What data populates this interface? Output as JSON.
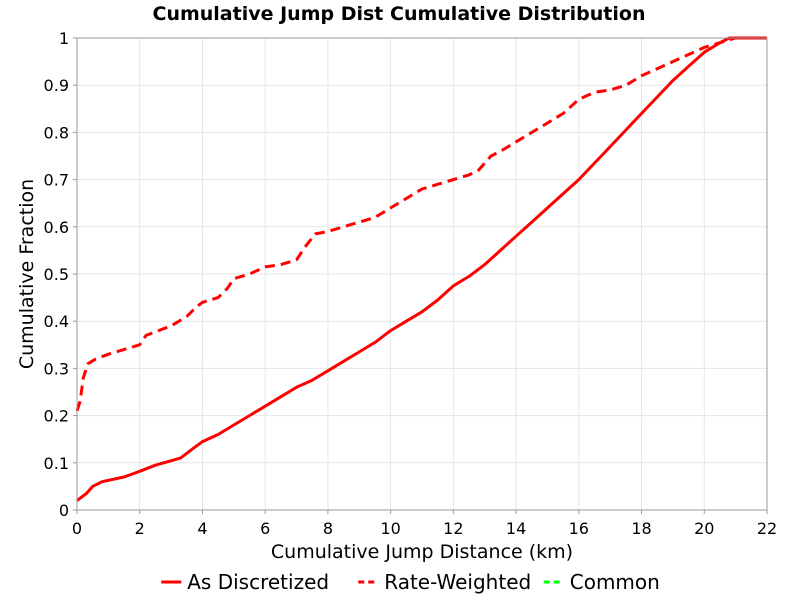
{
  "chart_data": {
    "type": "line",
    "title": "Cumulative Jump Dist Cumulative Distribution",
    "xlabel": "Cumulative Jump Distance (km)",
    "ylabel": "Cumulative Fraction",
    "xlim": [
      0,
      22
    ],
    "ylim": [
      0,
      1
    ],
    "x_ticks": [
      "0",
      "2",
      "4",
      "6",
      "8",
      "10",
      "12",
      "14",
      "16",
      "18",
      "20",
      "22"
    ],
    "y_ticks": [
      "0",
      "0.1",
      "0.2",
      "0.3",
      "0.4",
      "0.5",
      "0.6",
      "0.7",
      "0.8",
      "0.9",
      "1"
    ],
    "grid": true,
    "legend_position": "bottom",
    "series": [
      {
        "name": "As Discretized",
        "color": "#ff0000",
        "dash": "solid",
        "x": [
          0,
          0.3,
          0.5,
          0.8,
          1.5,
          2,
          2.5,
          3.3,
          3.7,
          4,
          4.5,
          5,
          5.5,
          6,
          6.5,
          7,
          7.5,
          8,
          8.5,
          9,
          9.5,
          10,
          10.5,
          11,
          11.5,
          12,
          12.5,
          13,
          13.5,
          14,
          14.5,
          15,
          15.5,
          16,
          16.5,
          17,
          17.5,
          18,
          18.5,
          19,
          19.5,
          20,
          20.5,
          20.8,
          21,
          22
        ],
        "y": [
          0.02,
          0.035,
          0.05,
          0.06,
          0.07,
          0.082,
          0.095,
          0.11,
          0.13,
          0.145,
          0.16,
          0.18,
          0.2,
          0.22,
          0.24,
          0.26,
          0.275,
          0.295,
          0.315,
          0.335,
          0.355,
          0.38,
          0.4,
          0.42,
          0.445,
          0.475,
          0.495,
          0.52,
          0.55,
          0.58,
          0.61,
          0.64,
          0.67,
          0.7,
          0.735,
          0.77,
          0.805,
          0.84,
          0.875,
          0.91,
          0.94,
          0.97,
          0.99,
          1.0,
          1.0,
          1.0
        ]
      },
      {
        "name": "Rate-Weighted",
        "color": "#ff0000",
        "dash": "dashed",
        "x": [
          0,
          0.1,
          0.2,
          0.35,
          0.6,
          1,
          1.5,
          2,
          2.2,
          2.6,
          3,
          3.5,
          3.8,
          4,
          4.5,
          4.8,
          5,
          5.5,
          6,
          6.5,
          7,
          7.3,
          7.6,
          8,
          8.5,
          9,
          9.5,
          10,
          10.5,
          11,
          11.5,
          12,
          12.5,
          12.8,
          13.2,
          13.5,
          14,
          14.5,
          15,
          15.5,
          16,
          16.5,
          17,
          17.5,
          18,
          18.5,
          19,
          19.5,
          20,
          20.5,
          21,
          22
        ],
        "y": [
          0.21,
          0.23,
          0.28,
          0.31,
          0.32,
          0.33,
          0.34,
          0.35,
          0.37,
          0.38,
          0.39,
          0.41,
          0.43,
          0.44,
          0.45,
          0.47,
          0.49,
          0.5,
          0.515,
          0.52,
          0.53,
          0.56,
          0.585,
          0.59,
          0.6,
          0.61,
          0.62,
          0.64,
          0.66,
          0.68,
          0.69,
          0.7,
          0.71,
          0.72,
          0.75,
          0.76,
          0.78,
          0.8,
          0.82,
          0.84,
          0.87,
          0.885,
          0.89,
          0.9,
          0.92,
          0.935,
          0.95,
          0.965,
          0.98,
          0.99,
          1.0,
          1.0
        ]
      },
      {
        "name": "Common",
        "color": "#00ff00",
        "dash": "dashed",
        "x": [],
        "y": []
      }
    ]
  }
}
